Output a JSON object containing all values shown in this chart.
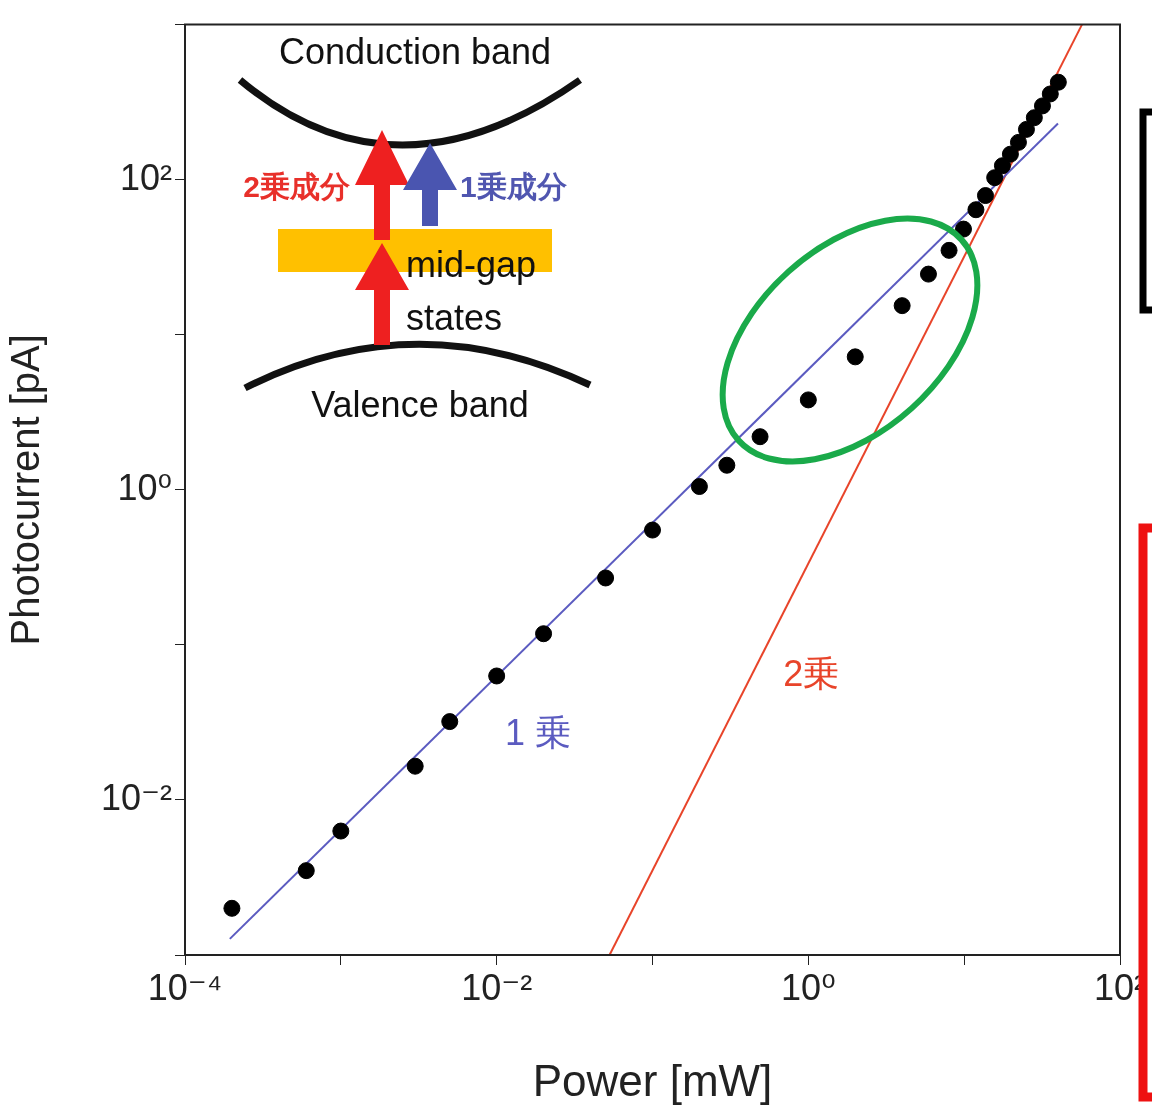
{
  "chart_data": {
    "type": "scatter",
    "xlabel": "Power [mW]",
    "ylabel": "Photocurrent [pA]",
    "xlim": [
      0.0001,
      100
    ],
    "ylim": [
      0.001,
      1000
    ],
    "xticks": [
      {
        "value": 0.0001,
        "label": "10⁻⁴"
      },
      {
        "value": 0.001,
        "label": null
      },
      {
        "value": 0.01,
        "label": "10⁻²"
      },
      {
        "value": 0.1,
        "label": null
      },
      {
        "value": 1,
        "label": "10⁰"
      },
      {
        "value": 10,
        "label": null
      },
      {
        "value": 100,
        "label": "10²"
      }
    ],
    "yticks": [
      {
        "value": 0.001,
        "label": null
      },
      {
        "value": 0.01,
        "label": "10⁻²"
      },
      {
        "value": 0.1,
        "label": null
      },
      {
        "value": 1,
        "label": "10⁰"
      },
      {
        "value": 10,
        "label": null
      },
      {
        "value": 100,
        "label": "10²"
      },
      {
        "value": 1000,
        "label": null
      }
    ],
    "log": "xy",
    "grid": false,
    "legend": false,
    "series": [
      {
        "marker": "circle",
        "color": "#000000",
        "x": [
          0.0002,
          0.0006,
          0.001,
          0.003,
          0.005,
          0.01,
          0.02,
          0.05,
          0.1,
          0.2,
          0.3,
          0.49,
          1.0,
          2.0,
          4.0,
          5.9,
          8.0,
          9.9,
          11.9,
          13.7,
          15.7,
          17.6,
          19.8,
          22.3,
          25.1,
          28.2,
          31.8,
          35.7,
          40.2
        ],
        "values": [
          0.002,
          0.0035,
          0.0063,
          0.0165,
          0.032,
          0.063,
          0.118,
          0.27,
          0.55,
          1.05,
          1.44,
          2.2,
          3.8,
          7.2,
          15.4,
          24.6,
          35,
          48,
          64,
          79,
          103,
          123,
          146,
          174,
          211,
          251,
          299,
          357,
          425
        ]
      },
      {
        "type": "line",
        "name": "1 乗",
        "color": "#5b5bc0",
        "x": [
          0.000194,
          40
        ],
        "values": [
          0.00127,
          230
        ]
      },
      {
        "type": "line",
        "name": "2乗",
        "color": "#e8442a",
        "x": [
          0.053,
          57
        ],
        "values": [
          0.001,
          1000
        ]
      }
    ],
    "annotations": [
      "Conduction band",
      "2乗成分",
      "1乗成分",
      "mid-gap",
      "states",
      "Valence band"
    ]
  }
}
